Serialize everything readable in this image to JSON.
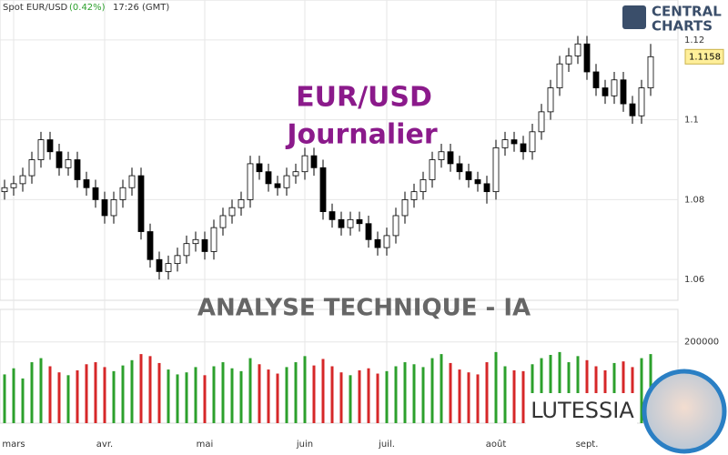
{
  "header": {
    "instrument": "Spot EUR/USD",
    "change": "(0.42%)",
    "time": "17:26 (GMT)"
  },
  "logo": {
    "line1": "CENTRAL",
    "line2": "CHARTS"
  },
  "banner": "ANALYSE TECHNIQUE - IA",
  "brand": "LUTESSIA",
  "chart_data": [
    {
      "type": "candlestick",
      "title": "EUR/USD",
      "subtitle": "Journalier",
      "categories": [
        null,
        "mars",
        null,
        null,
        null,
        null,
        null,
        null,
        null,
        null,
        null,
        "avr.",
        null,
        null,
        null,
        null,
        null,
        null,
        null,
        null,
        null,
        null,
        "mai",
        null,
        null,
        null,
        null,
        null,
        null,
        null,
        null,
        null,
        null,
        "juin",
        null,
        null,
        null,
        null,
        null,
        null,
        null,
        null,
        "juil.",
        null,
        null,
        null,
        null,
        null,
        null,
        null,
        null,
        null,
        null,
        null,
        "août",
        null,
        null,
        null,
        null,
        null,
        null,
        null,
        null,
        null,
        "sept.",
        null,
        null,
        null,
        null,
        null,
        null,
        null
      ],
      "open": [
        1.082,
        1.083,
        1.084,
        1.086,
        1.09,
        1.095,
        1.092,
        1.088,
        1.09,
        1.085,
        1.083,
        1.08,
        1.076,
        1.08,
        1.083,
        1.086,
        1.072,
        1.065,
        1.062,
        1.064,
        1.066,
        1.069,
        1.07,
        1.067,
        1.073,
        1.076,
        1.078,
        1.08,
        1.089,
        1.087,
        1.084,
        1.083,
        1.086,
        1.087,
        1.091,
        1.088,
        1.077,
        1.075,
        1.073,
        1.075,
        1.074,
        1.07,
        1.068,
        1.071,
        1.076,
        1.08,
        1.082,
        1.085,
        1.09,
        1.092,
        1.089,
        1.087,
        1.085,
        1.084,
        1.082,
        1.093,
        1.095,
        1.094,
        1.092,
        1.097,
        1.102,
        1.108,
        1.114,
        1.116,
        1.119,
        1.112,
        1.108,
        1.106,
        1.11,
        1.104,
        1.101,
        1.108
      ],
      "high": [
        1.085,
        1.086,
        1.088,
        1.092,
        1.097,
        1.097,
        1.094,
        1.092,
        1.092,
        1.087,
        1.085,
        1.082,
        1.082,
        1.085,
        1.088,
        1.088,
        1.074,
        1.067,
        1.066,
        1.068,
        1.071,
        1.072,
        1.072,
        1.075,
        1.078,
        1.08,
        1.082,
        1.091,
        1.091,
        1.089,
        1.086,
        1.088,
        1.089,
        1.093,
        1.093,
        1.09,
        1.079,
        1.077,
        1.077,
        1.077,
        1.076,
        1.072,
        1.073,
        1.078,
        1.082,
        1.084,
        1.087,
        1.092,
        1.094,
        1.094,
        1.091,
        1.089,
        1.087,
        1.086,
        1.095,
        1.097,
        1.097,
        1.096,
        1.099,
        1.104,
        1.11,
        1.116,
        1.118,
        1.121,
        1.121,
        1.114,
        1.11,
        1.112,
        1.112,
        1.106,
        1.11,
        1.119
      ],
      "low": [
        1.08,
        1.081,
        1.082,
        1.084,
        1.088,
        1.09,
        1.086,
        1.086,
        1.083,
        1.081,
        1.078,
        1.074,
        1.074,
        1.078,
        1.081,
        1.07,
        1.063,
        1.06,
        1.06,
        1.062,
        1.064,
        1.067,
        1.065,
        1.065,
        1.071,
        1.074,
        1.076,
        1.078,
        1.085,
        1.082,
        1.081,
        1.081,
        1.084,
        1.085,
        1.086,
        1.075,
        1.073,
        1.071,
        1.071,
        1.072,
        1.068,
        1.066,
        1.066,
        1.069,
        1.074,
        1.078,
        1.08,
        1.083,
        1.088,
        1.087,
        1.085,
        1.083,
        1.082,
        1.079,
        1.08,
        1.091,
        1.092,
        1.09,
        1.09,
        1.095,
        1.1,
        1.106,
        1.112,
        1.114,
        1.11,
        1.106,
        1.104,
        1.104,
        1.102,
        1.099,
        1.099,
        1.106
      ],
      "close": [
        1.083,
        1.084,
        1.086,
        1.09,
        1.095,
        1.092,
        1.088,
        1.09,
        1.085,
        1.083,
        1.08,
        1.076,
        1.08,
        1.083,
        1.086,
        1.072,
        1.065,
        1.062,
        1.064,
        1.066,
        1.069,
        1.07,
        1.067,
        1.073,
        1.076,
        1.078,
        1.08,
        1.089,
        1.087,
        1.084,
        1.083,
        1.086,
        1.087,
        1.091,
        1.088,
        1.077,
        1.075,
        1.073,
        1.075,
        1.074,
        1.07,
        1.068,
        1.071,
        1.076,
        1.08,
        1.082,
        1.085,
        1.09,
        1.092,
        1.089,
        1.087,
        1.085,
        1.084,
        1.082,
        1.093,
        1.095,
        1.094,
        1.092,
        1.097,
        1.102,
        1.108,
        1.114,
        1.116,
        1.119,
        1.112,
        1.108,
        1.106,
        1.11,
        1.104,
        1.101,
        1.108,
        1.1158
      ],
      "last_price": 1.1158,
      "up_color": "#ffffff",
      "down_color": "#000000",
      "ylim": [
        1.0548,
        1.13
      ],
      "yticks": [
        1.06,
        1.08,
        1.1,
        1.12
      ],
      "grid": true
    },
    {
      "type": "bar",
      "values": [
        120000,
        135000,
        110000,
        150000,
        160000,
        140000,
        125000,
        118000,
        130000,
        145000,
        150000,
        138000,
        128000,
        142000,
        155000,
        170000,
        165000,
        148000,
        132000,
        120000,
        125000,
        138000,
        118000,
        140000,
        150000,
        135000,
        128000,
        160000,
        145000,
        132000,
        122000,
        138000,
        150000,
        165000,
        142000,
        158000,
        140000,
        125000,
        118000,
        130000,
        135000,
        122000,
        128000,
        140000,
        150000,
        145000,
        138000,
        160000,
        170000,
        148000,
        132000,
        125000,
        120000,
        150000,
        175000,
        140000,
        130000,
        128000,
        145000,
        160000,
        168000,
        175000,
        150000,
        165000,
        155000,
        140000,
        130000,
        148000,
        152000,
        138000,
        160000,
        170000
      ],
      "up_color": "#2ca02c",
      "down_color": "#d62728",
      "ylim": [
        0,
        280000
      ],
      "yticks": [
        200000
      ],
      "grid": true
    }
  ]
}
